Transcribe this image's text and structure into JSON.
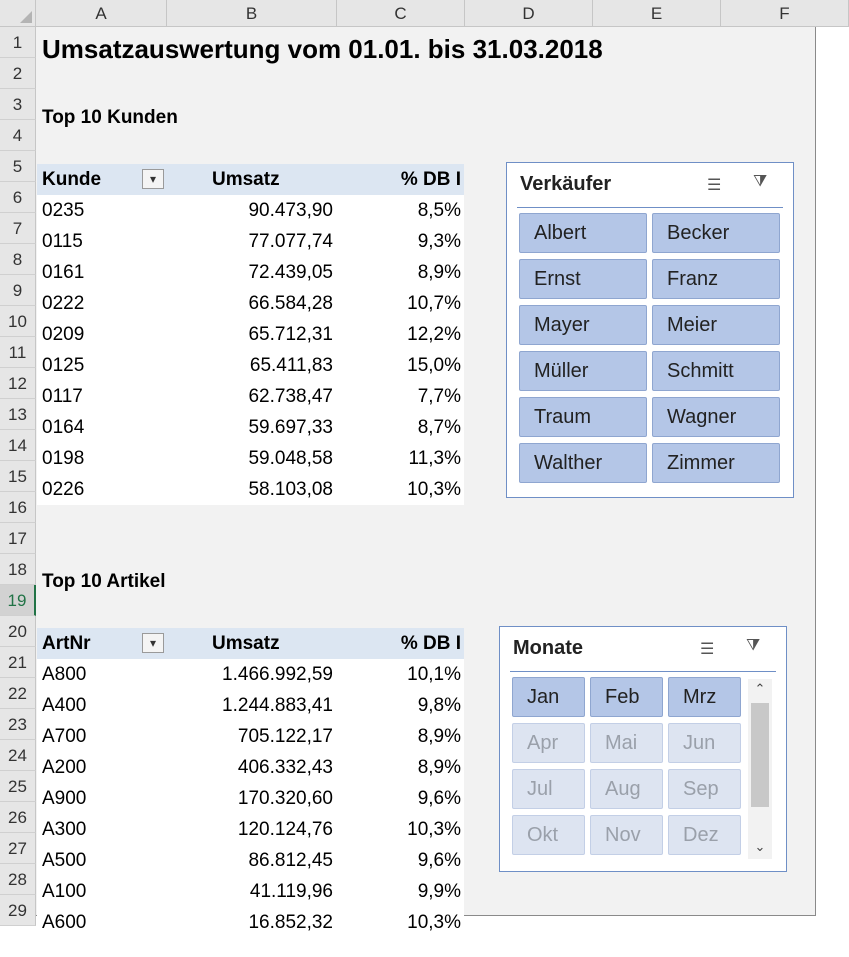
{
  "columns": [
    "A",
    "B",
    "C",
    "D",
    "E",
    "F"
  ],
  "rows": [
    "1",
    "2",
    "3",
    "4",
    "5",
    "6",
    "7",
    "8",
    "9",
    "10",
    "11",
    "12",
    "13",
    "14",
    "15",
    "16",
    "17",
    "18",
    "19",
    "20",
    "21",
    "22",
    "23",
    "24",
    "25",
    "26",
    "27",
    "28",
    "29"
  ],
  "selected_row": "19",
  "title": "Umsatzauswertung vom 01.01. bis 31.03.2018",
  "kunden": {
    "heading": "Top 10 Kunden",
    "headers": [
      "Kunde",
      "Umsatz",
      "% DB I"
    ],
    "rows": [
      [
        "0235",
        "90.473,90",
        "8,5%"
      ],
      [
        "0115",
        "77.077,74",
        "9,3%"
      ],
      [
        "0161",
        "72.439,05",
        "8,9%"
      ],
      [
        "0222",
        "66.584,28",
        "10,7%"
      ],
      [
        "0209",
        "65.712,31",
        "12,2%"
      ],
      [
        "0125",
        "65.411,83",
        "15,0%"
      ],
      [
        "0117",
        "62.738,47",
        "7,7%"
      ],
      [
        "0164",
        "59.697,33",
        "8,7%"
      ],
      [
        "0198",
        "59.048,58",
        "11,3%"
      ],
      [
        "0226",
        "58.103,08",
        "10,3%"
      ]
    ]
  },
  "artikel": {
    "heading": "Top 10 Artikel",
    "headers": [
      "ArtNr",
      "Umsatz",
      "% DB I"
    ],
    "rows": [
      [
        "A800",
        "1.466.992,59",
        "10,1%"
      ],
      [
        "A400",
        "1.244.883,41",
        "9,8%"
      ],
      [
        "A700",
        "705.122,17",
        "8,9%"
      ],
      [
        "A200",
        "406.332,43",
        "8,9%"
      ],
      [
        "A900",
        "170.320,60",
        "9,6%"
      ],
      [
        "A300",
        "120.124,76",
        "10,3%"
      ],
      [
        "A500",
        "86.812,45",
        "9,6%"
      ],
      [
        "A100",
        "41.119,96",
        "9,9%"
      ],
      [
        "A600",
        "16.852,32",
        "10,3%"
      ]
    ]
  },
  "slicer_verkaeufer": {
    "title": "Verkäufer",
    "items": [
      "Albert",
      "Becker",
      "Ernst",
      "Franz",
      "Mayer",
      "Meier",
      "Müller",
      "Schmitt",
      "Traum",
      "Wagner",
      "Walther",
      "Zimmer"
    ]
  },
  "slicer_monate": {
    "title": "Monate",
    "items": [
      "Jan",
      "Feb",
      "Mrz",
      "Apr",
      "Mai",
      "Jun",
      "Jul",
      "Aug",
      "Sep",
      "Okt",
      "Nov",
      "Dez"
    ],
    "selected": [
      "Jan",
      "Feb",
      "Mrz"
    ]
  },
  "icons": {
    "multiselect": "multi-select-icon",
    "clear_filter": "clear-filter-icon",
    "pivot_filter": "filter-dropdown-icon"
  },
  "colors": {
    "header_fill": "#dce6f2",
    "slicer_selected": "#b4c6e7",
    "slicer_unselected": "#dde4f1",
    "slicer_border": "#6f8fc6"
  }
}
